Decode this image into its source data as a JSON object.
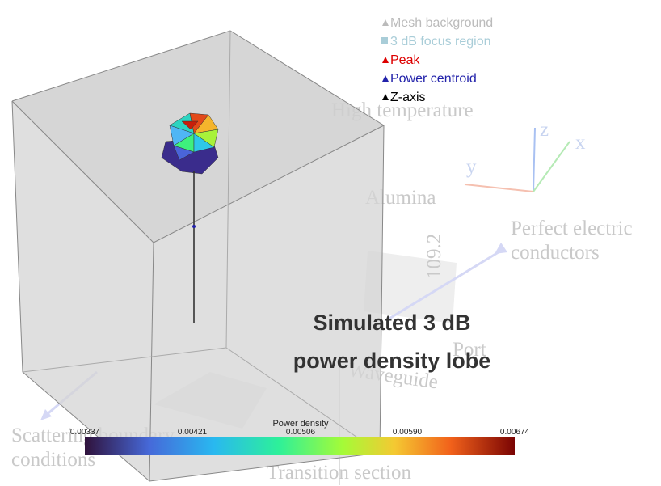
{
  "legend": {
    "items": [
      "Mesh background",
      "3 dB focus region",
      "Peak",
      "Power centroid",
      "Z-axis"
    ]
  },
  "annotation": {
    "lines": [
      "Simulated 3 dB",
      "power density lobe"
    ]
  },
  "colorbar": {
    "title": "Power density",
    "ticks": [
      "0.00337",
      "0.00421",
      "0.00506",
      "0.00590",
      "0.00674"
    ]
  },
  "axes": {
    "x": "x",
    "y": "y",
    "z": "z"
  },
  "background_labels": [
    "High temperature",
    "Alumina",
    "Perfect electric",
    "conductors",
    "Port",
    "Waveguide",
    "Scattering boundary",
    "conditions",
    "Transition section",
    "109.2"
  ]
}
